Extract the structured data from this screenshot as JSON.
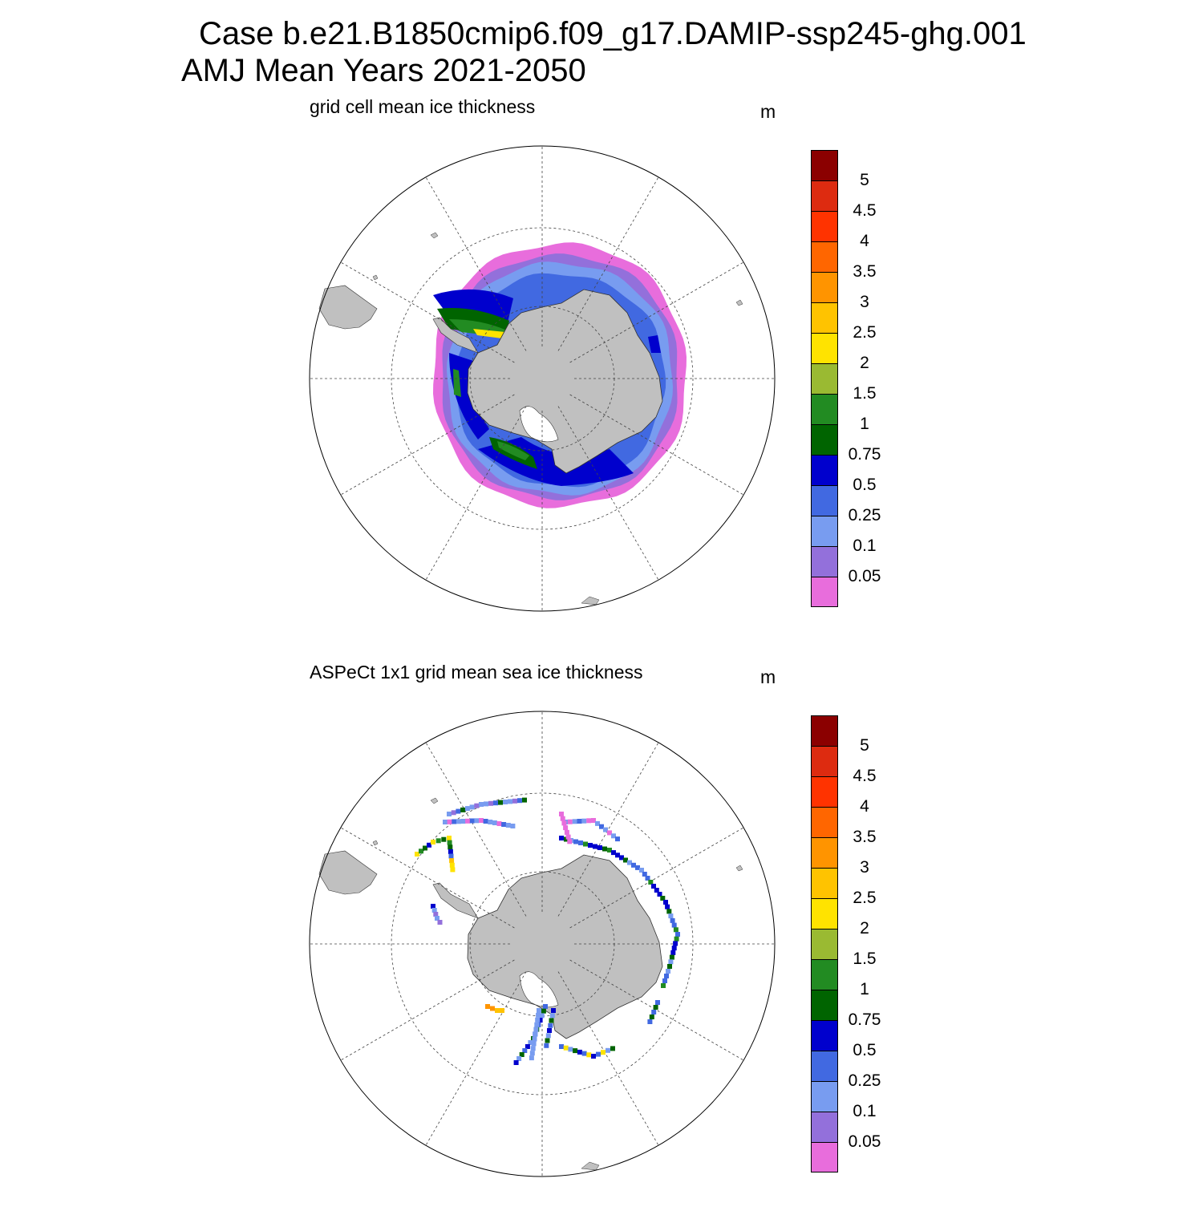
{
  "title_line1": "Case b.e21.B1850cmip6.f09_g17.DAMIP-ssp245-ghg.001",
  "title_line2": "AMJ Mean   Years 2021-2050",
  "colorbar": {
    "colors": [
      "#e86ddc",
      "#9370db",
      "#789cf0",
      "#4169e1",
      "#0000cd",
      "#006400",
      "#228b22",
      "#9aba32",
      "#ffe300",
      "#ffc300",
      "#ff9400",
      "#ff6600",
      "#ff3300",
      "#dd2b10",
      "#8b0000"
    ],
    "levels": [
      "0.05",
      "0.1",
      "0.25",
      "0.5",
      "0.75",
      "1",
      "1.5",
      "2",
      "2.5",
      "3",
      "3.5",
      "4",
      "4.5",
      "5"
    ]
  },
  "panels": [
    {
      "title": "grid cell mean ice thickness",
      "units": "m",
      "map_data": {
        "projection": "south polar stereographic",
        "latitude_circles": "dashed",
        "meridians": "dashed, every 30°",
        "land_color": "#c0c0c0",
        "field": "continuous model ice thickness field surrounding Antarctica"
      }
    },
    {
      "title": "ASPeCt 1x1 grid mean sea ice thickness",
      "units": "m",
      "map_data": {
        "projection": "south polar stereographic",
        "latitude_circles": "dashed",
        "meridians": "dashed, every 30°",
        "land_color": "#c0c0c0",
        "field": "sparse ship-track observations along transects"
      }
    }
  ]
}
